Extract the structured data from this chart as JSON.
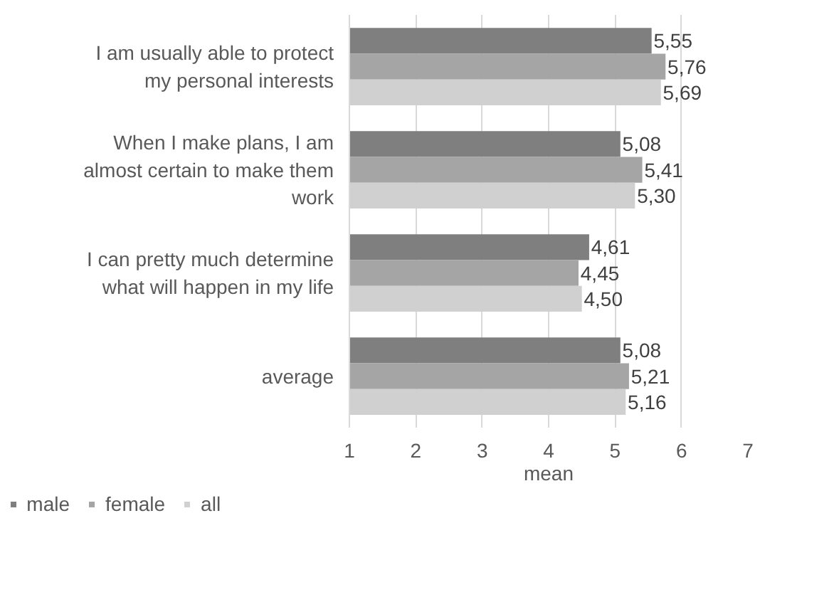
{
  "chart_data": {
    "type": "bar",
    "orientation": "horizontal",
    "xlabel": "mean",
    "categories": [
      "I am usually able to protect my personal interests",
      "When I make plans, I am almost certain to make them work",
      "I can pretty much determine what will happen in my life",
      "average"
    ],
    "series": [
      {
        "name": "male",
        "color": "#7f7f7f",
        "values": [
          5.55,
          5.08,
          4.61,
          5.08
        ],
        "value_labels": [
          "5,55",
          "5,08",
          "4,61",
          "5,08"
        ]
      },
      {
        "name": "female",
        "color": "#a5a5a5",
        "values": [
          5.76,
          5.41,
          4.45,
          5.21
        ],
        "value_labels": [
          "5,76",
          "5,41",
          "4,45",
          "5,21"
        ]
      },
      {
        "name": "all",
        "color": "#d0d0d0",
        "values": [
          5.69,
          5.3,
          4.5,
          5.16
        ],
        "value_labels": [
          "5,69",
          "5,30",
          "4,50",
          "5,16"
        ]
      }
    ],
    "xlim": [
      1,
      7
    ],
    "xticks": [
      1,
      2,
      3,
      4,
      5,
      6,
      7
    ],
    "grid": "x",
    "legend": "bottom left"
  }
}
